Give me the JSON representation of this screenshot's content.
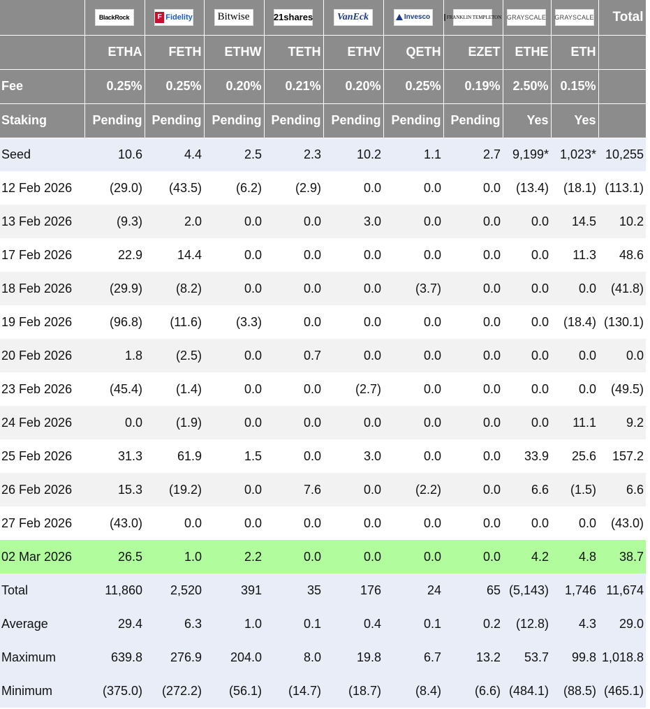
{
  "table": {
    "issuers": [
      {
        "name": "BlackRock",
        "logo": "blackrock-logo"
      },
      {
        "name": "Fidelity",
        "logo": "fidelity-logo"
      },
      {
        "name": "Bitwise",
        "logo": "bitwise-logo"
      },
      {
        "name": "21shares",
        "logo": "21shares-logo"
      },
      {
        "name": "VanEck",
        "logo": "vaneck-logo"
      },
      {
        "name": "Invesco",
        "logo": "invesco-logo"
      },
      {
        "name": "FRANKLIN TEMPLETON",
        "logo": "franklin-templeton-logo"
      },
      {
        "name": "GRAYSCALE",
        "logo": "grayscale-logo"
      },
      {
        "name": "GRAYSCALE",
        "logo": "grayscale-logo"
      }
    ],
    "total_header": "Total",
    "tickers": [
      "ETHA",
      "FETH",
      "ETHW",
      "TETH",
      "ETHV",
      "QETH",
      "EZET",
      "ETHE",
      "ETH"
    ],
    "fee_label": "Fee",
    "fees": [
      "0.25%",
      "0.25%",
      "0.20%",
      "0.21%",
      "0.20%",
      "0.25%",
      "0.19%",
      "2.50%",
      "0.15%"
    ],
    "staking_label": "Staking",
    "staking": [
      "Pending",
      "Pending",
      "Pending",
      "Pending",
      "Pending",
      "Pending",
      "Pending",
      "Yes",
      "Yes"
    ],
    "rows": [
      {
        "label": "Seed",
        "style": "seed",
        "cells": [
          "10.6",
          "4.4",
          "2.5",
          "2.3",
          "10.2",
          "1.1",
          "2.7",
          "9,199*",
          "1,023*",
          "10,255"
        ]
      },
      {
        "label": "12 Feb 2026",
        "style": "even",
        "cells": [
          "(29.0)",
          "(43.5)",
          "(6.2)",
          "(2.9)",
          "0.0",
          "0.0",
          "0.0",
          "(13.4)",
          "(18.1)",
          "(113.1)"
        ]
      },
      {
        "label": "13 Feb 2026",
        "style": "odd",
        "cells": [
          "(9.3)",
          "2.0",
          "0.0",
          "0.0",
          "3.0",
          "0.0",
          "0.0",
          "0.0",
          "14.5",
          "10.2"
        ]
      },
      {
        "label": "17 Feb 2026",
        "style": "even",
        "cells": [
          "22.9",
          "14.4",
          "0.0",
          "0.0",
          "0.0",
          "0.0",
          "0.0",
          "0.0",
          "11.3",
          "48.6"
        ]
      },
      {
        "label": "18 Feb 2026",
        "style": "odd",
        "cells": [
          "(29.9)",
          "(8.2)",
          "0.0",
          "0.0",
          "0.0",
          "(3.7)",
          "0.0",
          "0.0",
          "0.0",
          "(41.8)"
        ]
      },
      {
        "label": "19 Feb 2026",
        "style": "even",
        "cells": [
          "(96.8)",
          "(11.6)",
          "(3.3)",
          "0.0",
          "0.0",
          "0.0",
          "0.0",
          "0.0",
          "(18.4)",
          "(130.1)"
        ]
      },
      {
        "label": "20 Feb 2026",
        "style": "odd",
        "cells": [
          "1.8",
          "(2.5)",
          "0.0",
          "0.7",
          "0.0",
          "0.0",
          "0.0",
          "0.0",
          "0.0",
          "0.0"
        ]
      },
      {
        "label": "23 Feb 2026",
        "style": "even",
        "cells": [
          "(45.4)",
          "(1.4)",
          "0.0",
          "0.0",
          "(2.7)",
          "0.0",
          "0.0",
          "0.0",
          "0.0",
          "(49.5)"
        ]
      },
      {
        "label": "24 Feb 2026",
        "style": "odd",
        "cells": [
          "0.0",
          "(1.9)",
          "0.0",
          "0.0",
          "0.0",
          "0.0",
          "0.0",
          "0.0",
          "11.1",
          "9.2"
        ]
      },
      {
        "label": "25 Feb 2026",
        "style": "even",
        "cells": [
          "31.3",
          "61.9",
          "1.5",
          "0.0",
          "3.0",
          "0.0",
          "0.0",
          "33.9",
          "25.6",
          "157.2"
        ]
      },
      {
        "label": "26 Feb 2026",
        "style": "odd",
        "cells": [
          "15.3",
          "(19.2)",
          "0.0",
          "7.6",
          "0.0",
          "(2.2)",
          "0.0",
          "6.6",
          "(1.5)",
          "6.6"
        ]
      },
      {
        "label": "27 Feb 2026",
        "style": "even",
        "cells": [
          "(43.0)",
          "0.0",
          "0.0",
          "0.0",
          "0.0",
          "0.0",
          "0.0",
          "0.0",
          "0.0",
          "(43.0)"
        ]
      },
      {
        "label": "02 Mar 2026",
        "style": "highlight",
        "cells": [
          "26.5",
          "1.0",
          "2.2",
          "0.0",
          "0.0",
          "0.0",
          "0.0",
          "4.2",
          "4.8",
          "38.7"
        ]
      },
      {
        "label": "Total",
        "style": "summary",
        "cells": [
          "11,860",
          "2,520",
          "391",
          "35",
          "176",
          "24",
          "65",
          "(5,143)",
          "1,746",
          "11,674"
        ]
      },
      {
        "label": "Average",
        "style": "summary",
        "cells": [
          "29.4",
          "6.3",
          "1.0",
          "0.1",
          "0.4",
          "0.1",
          "0.2",
          "(12.8)",
          "4.3",
          "29.0"
        ]
      },
      {
        "label": "Maximum",
        "style": "summary",
        "cells": [
          "639.8",
          "276.9",
          "204.0",
          "8.0",
          "19.8",
          "6.7",
          "13.2",
          "53.7",
          "99.8",
          "1,018.8"
        ]
      },
      {
        "label": "Minimum",
        "style": "summary",
        "cells": [
          "(375.0)",
          "(272.2)",
          "(56.1)",
          "(14.7)",
          "(18.7)",
          "(8.4)",
          "(6.6)",
          "(484.1)",
          "(88.5)",
          "(465.1)"
        ]
      }
    ]
  },
  "colors": {
    "header_bg": "#8c8c8c",
    "negative": "#e0262a",
    "seed_summary_bg": "#e8edf7",
    "highlight_bg": "#b1fc9d",
    "stripe_bg": "#f2f2f2"
  }
}
